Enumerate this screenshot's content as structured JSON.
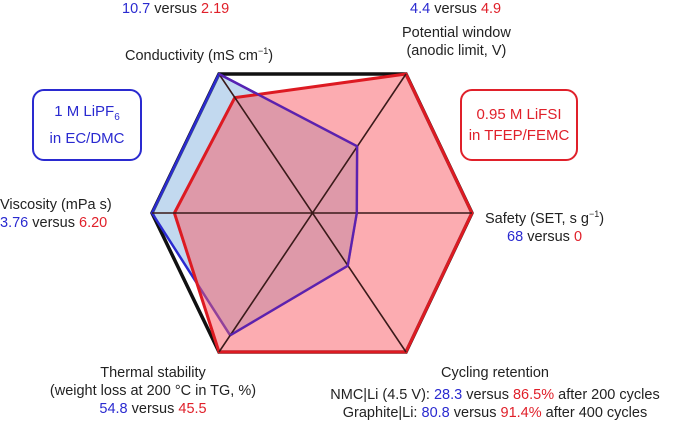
{
  "chart_data": {
    "type": "radar",
    "axes": [
      {
        "name": "Conductivity (mS cm⁻¹)",
        "values_text": [
          "10.7",
          "2.19"
        ]
      },
      {
        "name": "Potential window (anodic limit, V)",
        "values_text": [
          "4.4",
          "4.9"
        ]
      },
      {
        "name": "Safety (SET, s g⁻¹)",
        "values_text": [
          "68",
          "0"
        ]
      },
      {
        "name": "Cycling retention",
        "values_text": [
          "28.3 / 80.8",
          "86.5% / 91.4%"
        ]
      },
      {
        "name": "Thermal stability (weight loss at 200 °C in TG, %)",
        "values_text": [
          "54.8",
          "45.5"
        ]
      },
      {
        "name": "Viscosity (mPa s)",
        "values_text": [
          "3.76",
          "6.20"
        ]
      }
    ],
    "series": [
      {
        "name": "1 M LiPF6 in EC/DMC",
        "color": "#2a2ad0",
        "normalized": [
          1.0,
          0.48,
          0.28,
          0.38,
          0.88,
          1.0
        ]
      },
      {
        "name": "0.95 M LiFSI in TFEP/FEMC",
        "color": "#e0202a",
        "normalized": [
          0.83,
          1.0,
          1.0,
          1.0,
          1.0,
          0.86
        ]
      }
    ]
  },
  "labels": {
    "versus": "versus",
    "conductivity": {
      "title": "Conductivity (mS cm",
      "sup": "−1",
      "close": ")",
      "blue": "10.7",
      "red": "2.19"
    },
    "potential": {
      "line1": "Potential window",
      "line2": "(anodic limit, V)",
      "blue": "4.4",
      "red": "4.9"
    },
    "safety": {
      "title": "Safety (SET, s g",
      "sup": "−1",
      "close": ")",
      "blue": "68",
      "red": "0"
    },
    "viscosity": {
      "title": "Viscosity (mPa s)",
      "blue": "3.76",
      "red": "6.20"
    },
    "thermal": {
      "line1": "Thermal stability",
      "line2": "(weight loss at 200 °C in TG, %)",
      "blue": "54.8",
      "red": "45.5"
    },
    "cycling": {
      "title": "Cycling retention",
      "nmc_prefix": "NMC|Li (4.5 V):",
      "nmc_blue": "28.3",
      "nmc_red": "86.5%",
      "nmc_suffix": "after 200 cycles",
      "gr_prefix": "Graphite|Li:",
      "gr_blue": "80.8",
      "gr_red": "91.4%",
      "gr_suffix": "after 400 cycles"
    }
  },
  "legend": {
    "blue": {
      "line1": "1 M LiPF",
      "sub": "6",
      "line2": "in EC/DMC"
    },
    "red": {
      "line1": "0.95 M LiFSI",
      "line2": "in TFEP/FEMC"
    }
  }
}
